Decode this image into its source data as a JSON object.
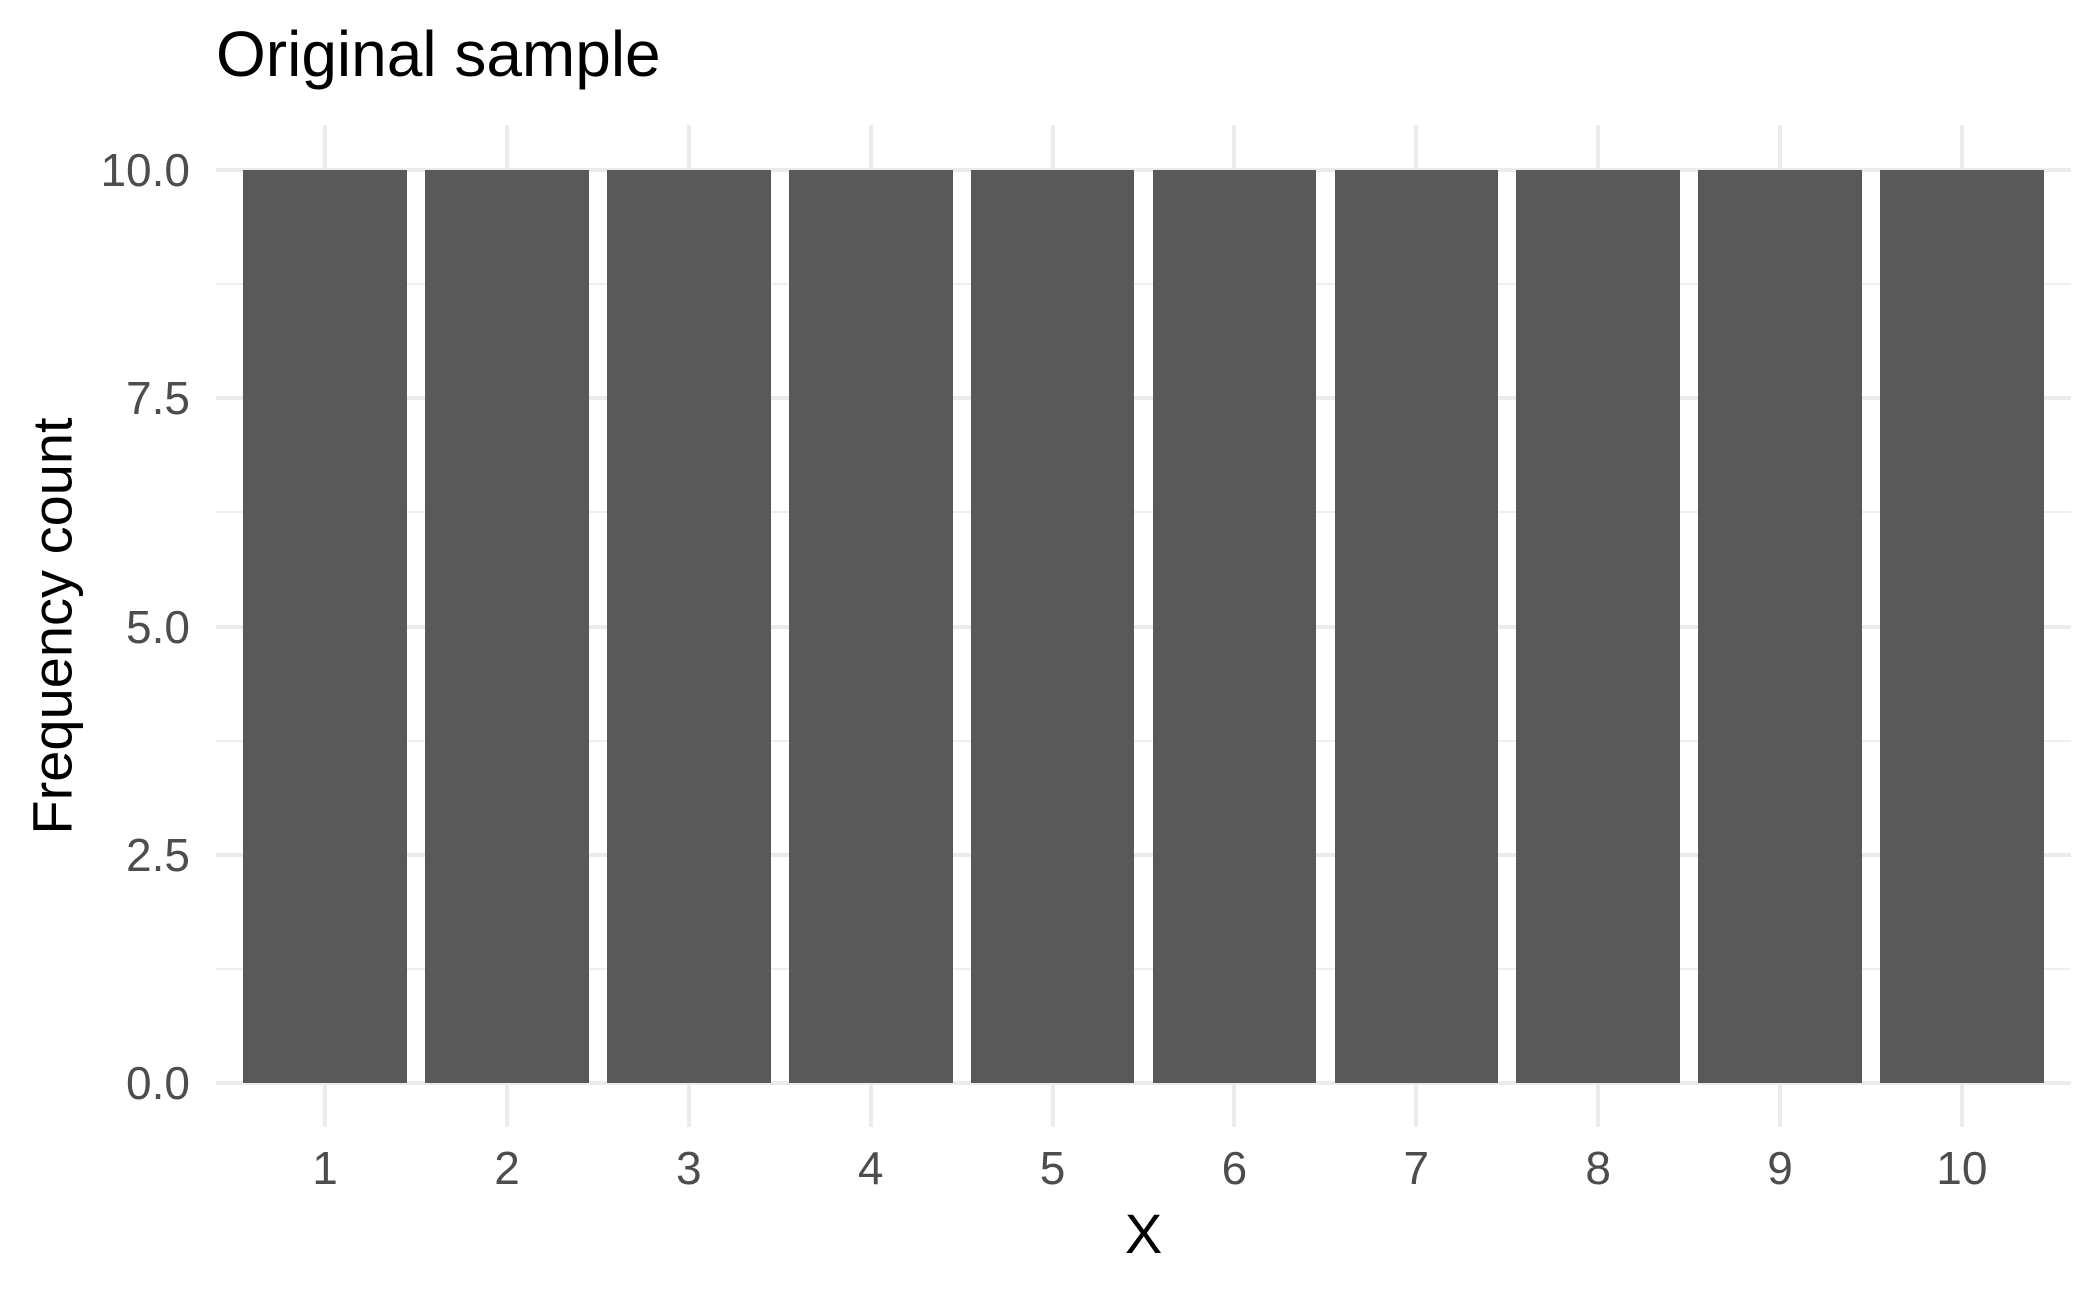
{
  "chart_data": {
    "type": "bar",
    "title": "Original sample",
    "xlabel": "X",
    "ylabel": "Frequency count",
    "categories": [
      "1",
      "2",
      "3",
      "4",
      "5",
      "6",
      "7",
      "8",
      "9",
      "10"
    ],
    "values": [
      10,
      10,
      10,
      10,
      10,
      10,
      10,
      10,
      10,
      10
    ],
    "ylim": [
      -0.5,
      10.5
    ],
    "y_major_ticks": [
      0.0,
      2.5,
      5.0,
      7.5,
      10.0
    ],
    "y_tick_labels": [
      "0.0",
      "2.5",
      "5.0",
      "7.5",
      "10.0"
    ],
    "y_minor_ticks": [
      1.25,
      3.75,
      6.25,
      8.75
    ],
    "grid": true,
    "legend_position": "none",
    "bar_width_fraction": 0.9,
    "colors": {
      "bar_fill": "#595959",
      "grid_major": "#EBEBEB",
      "grid_minor": "#EFEFEF",
      "axis_text": "#4D4D4D",
      "title_text": "#000000",
      "background": "#FFFFFF"
    }
  }
}
